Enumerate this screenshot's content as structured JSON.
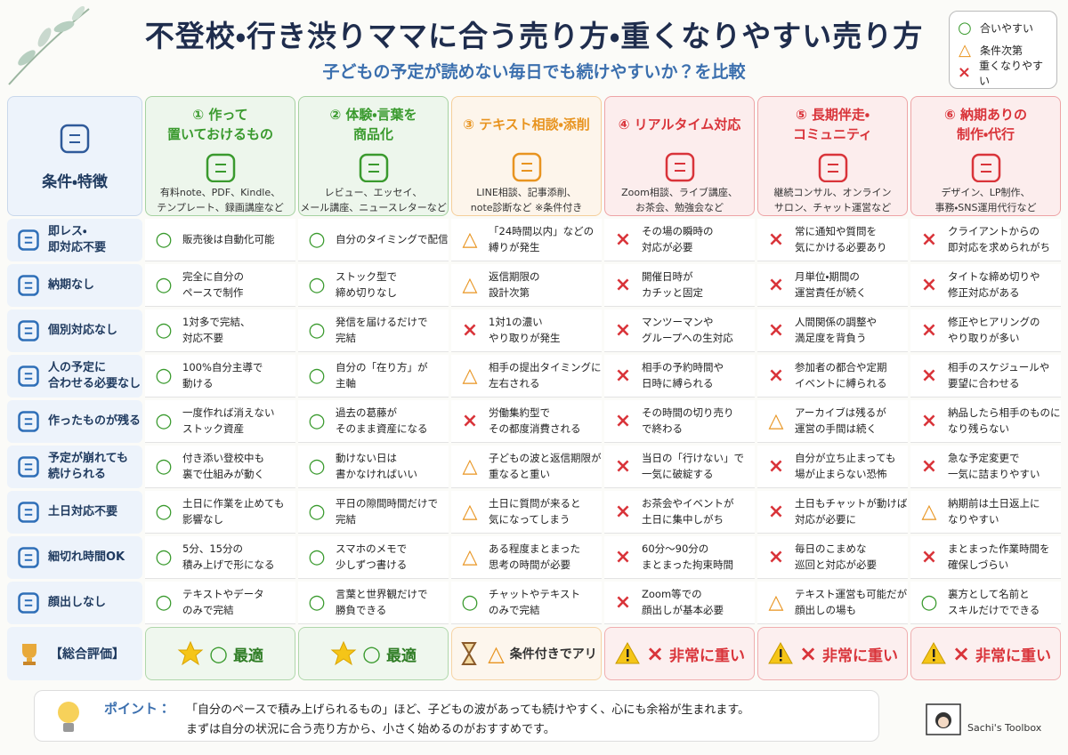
{
  "header": {
    "title": "不登校・行き渋りママに合う売り方・重くなりやすい売り方",
    "subtitle": "子どもの予定が読めない毎日でも続けやすいか？を比較"
  },
  "legend": [
    {
      "mark": "○",
      "label": "合いやすい",
      "color": "#3a9a2e"
    },
    {
      "mark": "△",
      "label": "条件次第",
      "color": "#e89420"
    },
    {
      "mark": "×",
      "label": "重くなりやすい",
      "color": "#d9343a"
    }
  ],
  "table": {
    "corner": "条件・特徴",
    "columns": [
      {
        "title": "① 作って\n置いておけるもの",
        "desc": "有料note、PDF、Kindle、\nテンプレート、録画講座など"
      },
      {
        "title": "② 体験・言葉を\n商品化",
        "desc": "レビュー、エッセイ、\nメール講座、ニュースレターなど"
      },
      {
        "title": "③ テキスト相談・添削",
        "desc": "LINE相談、記事添削、\nnote診断など ※条件付き"
      },
      {
        "title": "④ リアルタイム対応",
        "desc": "Zoom相談、ライブ講座、\nお茶会、勉強会など"
      },
      {
        "title": "⑤ 長期伴走・\nコミュニティ",
        "desc": "継続コンサル、オンライン\nサロン、チャット運営など"
      },
      {
        "title": "⑥ 納期ありの\n制作・代行",
        "desc": "デザイン、LP制作、\n事務・SNS運用代行など"
      }
    ],
    "rows": [
      {
        "label": "即レス・\n即対応不要",
        "cells": [
          {
            "mark": "○",
            "text": "販売後は自動化可能"
          },
          {
            "mark": "○",
            "text": "自分のタイミングで配信"
          },
          {
            "mark": "△",
            "text": "「24時間以内」などの\n縛りが発生"
          },
          {
            "mark": "×",
            "text": "その場の瞬時の\n対応が必要"
          },
          {
            "mark": "×",
            "text": "常に通知や質問を\n気にかける必要あり"
          },
          {
            "mark": "×",
            "text": "クライアントからの\n即対応を求められがち"
          }
        ]
      },
      {
        "label": "納期なし",
        "cells": [
          {
            "mark": "○",
            "text": "完全に自分の\nペースで制作"
          },
          {
            "mark": "○",
            "text": "ストック型で\n締め切りなし"
          },
          {
            "mark": "△",
            "text": "返信期限の\n設計次第"
          },
          {
            "mark": "×",
            "text": "開催日時が\nカチッと固定"
          },
          {
            "mark": "×",
            "text": "月単位・期間の\n運営責任が続く"
          },
          {
            "mark": "×",
            "text": "タイトな締め切りや\n修正対応がある"
          }
        ]
      },
      {
        "label": "個別対応なし",
        "cells": [
          {
            "mark": "○",
            "text": "1対多で完結、\n対応不要"
          },
          {
            "mark": "○",
            "text": "発信を届けるだけで\n完結"
          },
          {
            "mark": "×",
            "text": "1対1の濃い\nやり取りが発生"
          },
          {
            "mark": "×",
            "text": "マンツーマンや\nグループへの生対応"
          },
          {
            "mark": "×",
            "text": "人間関係の調整や\n満足度を背負う"
          },
          {
            "mark": "×",
            "text": "修正やヒアリングの\nやり取りが多い"
          }
        ]
      },
      {
        "label": "人の予定に\n合わせる必要なし",
        "cells": [
          {
            "mark": "○",
            "text": "100%自分主導で\n動ける"
          },
          {
            "mark": "○",
            "text": "自分の「在り方」が\n主軸"
          },
          {
            "mark": "△",
            "text": "相手の提出タイミングに\n左右される"
          },
          {
            "mark": "×",
            "text": "相手の予約時間や\n日時に縛られる"
          },
          {
            "mark": "×",
            "text": "参加者の都合や定期\nイベントに縛られる"
          },
          {
            "mark": "×",
            "text": "相手のスケジュールや\n要望に合わせる"
          }
        ]
      },
      {
        "label": "作ったものが残る",
        "cells": [
          {
            "mark": "○",
            "text": "一度作れば消えない\nストック資産"
          },
          {
            "mark": "○",
            "text": "過去の葛藤が\nそのまま資産になる"
          },
          {
            "mark": "×",
            "text": "労働集約型で\nその都度消費される"
          },
          {
            "mark": "×",
            "text": "その時間の切り売り\nで終わる"
          },
          {
            "mark": "△",
            "text": "アーカイブは残るが\n運営の手間は続く"
          },
          {
            "mark": "×",
            "text": "納品したら相手のものに\nなり残らない"
          }
        ]
      },
      {
        "label": "予定が崩れても\n続けられる",
        "cells": [
          {
            "mark": "○",
            "text": "付き添い登校中も\n裏で仕組みが動く"
          },
          {
            "mark": "○",
            "text": "動けない日は\n書かなければいい"
          },
          {
            "mark": "△",
            "text": "子どもの波と返信期限が\n重なると重い"
          },
          {
            "mark": "×",
            "text": "当日の「行けない」で\n一気に破綻する"
          },
          {
            "mark": "×",
            "text": "自分が立ち止まっても\n場が止まらない恐怖"
          },
          {
            "mark": "×",
            "text": "急な予定変更で\n一気に詰まりやすい"
          }
        ]
      },
      {
        "label": "土日対応不要",
        "cells": [
          {
            "mark": "○",
            "text": "土日に作業を止めても\n影響なし"
          },
          {
            "mark": "○",
            "text": "平日の隙間時間だけで\n完結"
          },
          {
            "mark": "△",
            "text": "土日に質問が来ると\n気になってしまう"
          },
          {
            "mark": "×",
            "text": "お茶会やイベントが\n土日に集中しがち"
          },
          {
            "mark": "×",
            "text": "土日もチャットが動けば\n対応が必要に"
          },
          {
            "mark": "△",
            "text": "納期前は土日返上に\nなりやすい"
          }
        ]
      },
      {
        "label": "細切れ時間OK",
        "cells": [
          {
            "mark": "○",
            "text": "5分、15分の\n積み上げで形になる"
          },
          {
            "mark": "○",
            "text": "スマホのメモで\n少しずつ書ける"
          },
          {
            "mark": "△",
            "text": "ある程度まとまった\n思考の時間が必要"
          },
          {
            "mark": "×",
            "text": "60分〜90分の\nまとまった拘束時間"
          },
          {
            "mark": "×",
            "text": "毎日のこまめな\n巡回と対応が必要"
          },
          {
            "mark": "×",
            "text": "まとまった作業時間を\n確保しづらい"
          }
        ]
      },
      {
        "label": "顔出しなし",
        "cells": [
          {
            "mark": "○",
            "text": "テキストやデータ\nのみで完結"
          },
          {
            "mark": "○",
            "text": "言葉と世界観だけで\n勝負できる"
          },
          {
            "mark": "○",
            "text": "チャットやテキスト\nのみで完結"
          },
          {
            "mark": "×",
            "text": "Zoom等での\n顔出しが基本必要"
          },
          {
            "mark": "△",
            "text": "テキスト運営も可能だが\n顔出しの場も"
          },
          {
            "mark": "○",
            "text": "裏方として名前と\nスキルだけでできる"
          }
        ]
      }
    ],
    "summary": {
      "label": "【総合評価】",
      "cells": [
        {
          "mark": "○",
          "text": "最適"
        },
        {
          "mark": "○",
          "text": "最適"
        },
        {
          "mark": "△",
          "text": "条件付きでアリ"
        },
        {
          "mark": "×",
          "text": "非常に重い"
        },
        {
          "mark": "×",
          "text": "非常に重い"
        },
        {
          "mark": "×",
          "text": "非常に重い"
        }
      ]
    }
  },
  "footer": {
    "point_label": "ポイント：",
    "lines": [
      "「自分のペースで積み上げられるもの」ほど、子どもの波があっても続けやすく、心にも余裕が生まれます。",
      "まずは自分の状況に合う売り方から、小さく始めるのがおすすめです。"
    ],
    "brand": "Sachi's Toolbox"
  }
}
